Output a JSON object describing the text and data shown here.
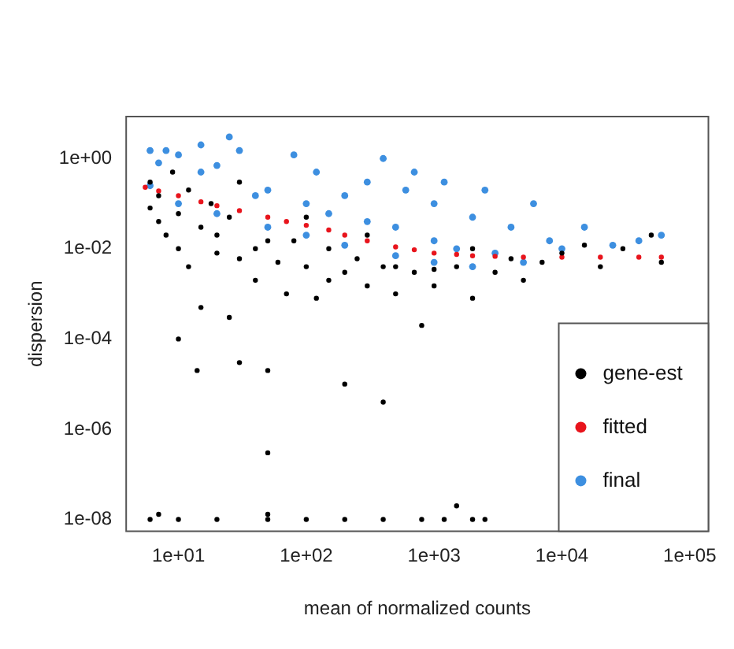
{
  "chart_data": {
    "type": "scatter",
    "xlabel": "mean of normalized counts",
    "ylabel": "dispersion",
    "log": "xy",
    "grid": false,
    "legend": "bottom right",
    "marker": "circle",
    "xlim": [
      3.9,
      140000
    ],
    "xticks": [
      {
        "value": 10,
        "label": "1e+01"
      },
      {
        "value": 100,
        "label": "1e+02"
      },
      {
        "value": 1000,
        "label": "1e+03"
      },
      {
        "value": 10000,
        "label": "1e+04"
      },
      {
        "value": 100000,
        "label": "1e+05"
      }
    ],
    "ylim": [
      5.5e-09,
      8.5
    ],
    "yticks": [
      {
        "value": 1,
        "label": "1e+00"
      },
      {
        "value": 0.01,
        "label": "1e-02"
      },
      {
        "value": 0.0001,
        "label": "1e-04"
      },
      {
        "value": 1e-06,
        "label": "1e-06"
      },
      {
        "value": 1e-08,
        "label": "1e-08"
      }
    ],
    "series": [
      {
        "name": "gene-est",
        "color": "#000000",
        "x": [
          6,
          6,
          7,
          7,
          8,
          9,
          10,
          10,
          12,
          12,
          15,
          15,
          18,
          20,
          20,
          25,
          25,
          30,
          30,
          40,
          40,
          50,
          50,
          60,
          70,
          80,
          100,
          100,
          120,
          150,
          150,
          200,
          200,
          250,
          300,
          300,
          400,
          400,
          500,
          500,
          700,
          800,
          1000,
          1000,
          1500,
          2000,
          2000,
          3000,
          4000,
          5000,
          7000,
          10000,
          15000,
          20000,
          30000,
          50000,
          60000,
          10,
          14,
          30,
          50,
          6,
          10,
          20,
          50,
          100,
          200,
          400,
          800,
          1200,
          2000,
          2500,
          7,
          50,
          1500
        ],
        "values": [
          0.3,
          0.08,
          0.04,
          0.15,
          0.02,
          0.5,
          0.06,
          0.01,
          0.2,
          0.004,
          0.03,
          0.0005,
          0.1,
          0.008,
          0.02,
          0.0003,
          0.05,
          0.006,
          0.3,
          0.01,
          0.002,
          0.015,
          2e-05,
          0.005,
          0.001,
          0.015,
          0.004,
          0.05,
          0.0008,
          0.01,
          0.002,
          0.003,
          1e-05,
          0.006,
          0.02,
          0.0015,
          0.004,
          4e-06,
          0.004,
          0.001,
          0.003,
          0.0002,
          0.0035,
          0.0015,
          0.004,
          0.0008,
          0.01,
          0.003,
          0.006,
          0.002,
          0.005,
          0.008,
          0.012,
          0.004,
          0.01,
          0.02,
          0.005,
          0.0001,
          2e-05,
          3e-05,
          3e-07,
          1e-08,
          1e-08,
          1e-08,
          1e-08,
          1e-08,
          1e-08,
          1e-08,
          1e-08,
          1e-08,
          1e-08,
          1e-08,
          1.3e-08,
          1.3e-08,
          2e-08
        ]
      },
      {
        "name": "fitted",
        "color": "#e8141c",
        "x": [
          5.5,
          7,
          10,
          15,
          20,
          30,
          50,
          70,
          100,
          150,
          200,
          300,
          500,
          700,
          1000,
          1500,
          2000,
          3000,
          5000,
          10000,
          20000,
          40000,
          60000
        ],
        "values": [
          0.23,
          0.19,
          0.15,
          0.11,
          0.09,
          0.07,
          0.05,
          0.04,
          0.033,
          0.026,
          0.02,
          0.015,
          0.011,
          0.0095,
          0.008,
          0.0075,
          0.007,
          0.0068,
          0.0065,
          0.0065,
          0.0065,
          0.0065,
          0.0065
        ]
      },
      {
        "name": "final",
        "color": "#3d8fe0",
        "x": [
          6,
          6,
          7,
          8,
          10,
          15,
          15,
          20,
          25,
          30,
          40,
          50,
          80,
          100,
          120,
          150,
          200,
          300,
          300,
          400,
          500,
          600,
          700,
          1000,
          1000,
          1200,
          1500,
          2000,
          2500,
          3000,
          4000,
          5000,
          6000,
          8000,
          10000,
          15000,
          25000,
          40000,
          60000,
          10,
          20,
          50,
          100,
          200,
          500,
          1000,
          2000
        ],
        "values": [
          0.25,
          1.5,
          0.8,
          1.5,
          1.2,
          2,
          0.5,
          0.7,
          3,
          1.5,
          0.15,
          0.2,
          1.2,
          0.1,
          0.5,
          0.06,
          0.15,
          0.04,
          0.3,
          1,
          0.03,
          0.2,
          0.5,
          0.015,
          0.1,
          0.3,
          0.01,
          0.05,
          0.2,
          0.008,
          0.03,
          0.005,
          0.1,
          0.015,
          0.01,
          0.03,
          0.012,
          0.015,
          0.02,
          0.1,
          0.06,
          0.03,
          0.02,
          0.012,
          0.007,
          0.005,
          0.004
        ]
      }
    ]
  }
}
